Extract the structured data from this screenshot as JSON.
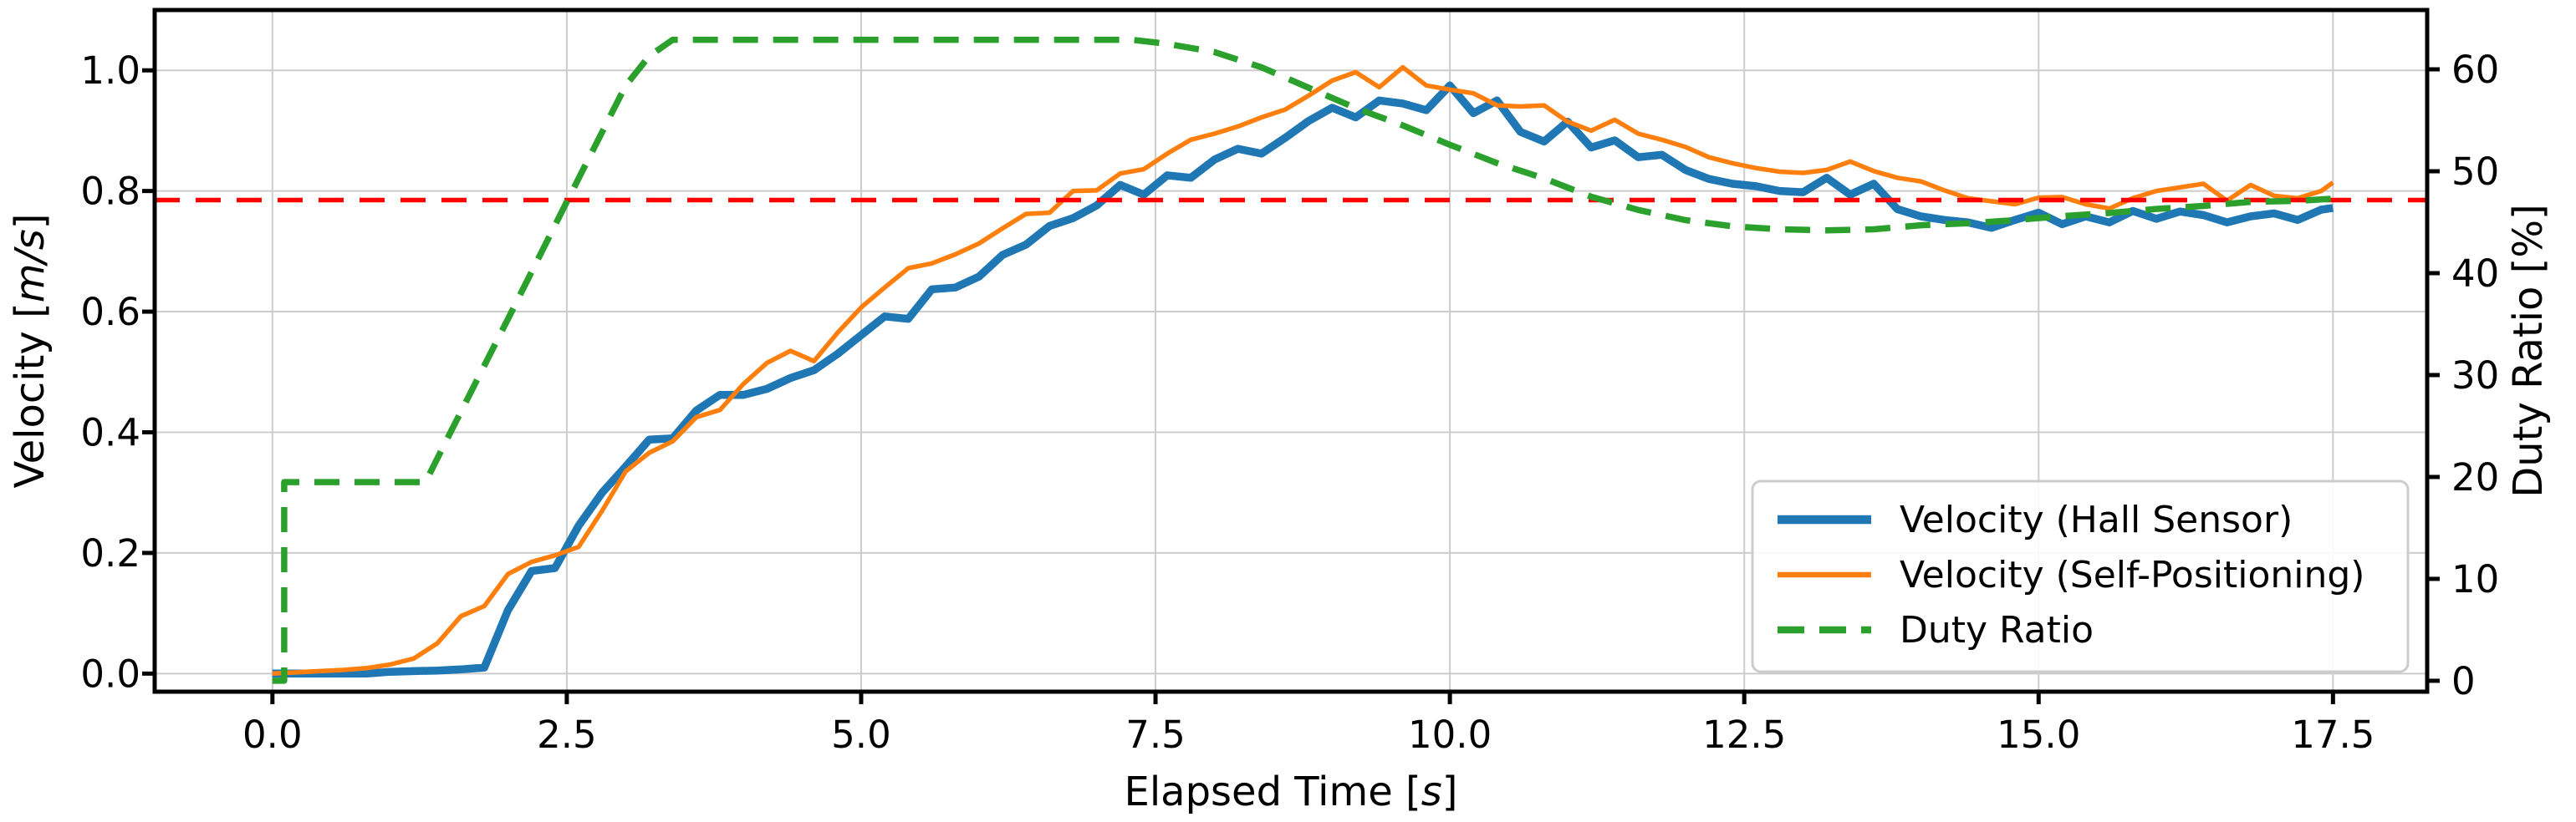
{
  "chart_data": {
    "type": "line",
    "title": "",
    "xlabel": {
      "prefix": "Elapsed Time [",
      "math": "s",
      "suffix": "]"
    },
    "ylabel_left": {
      "prefix": "Velocity [",
      "math": "m/s",
      "suffix": "]"
    },
    "ylabel_right": {
      "prefix": "Duty Ratio [",
      "math": "",
      "suffix": "%]"
    },
    "xlim": [
      -1.0,
      18.3
    ],
    "ylim_left": [
      -0.03,
      1.1
    ],
    "ylim_right": [
      -1.07,
      65.82
    ],
    "grid": true,
    "x_ticks": [
      0.0,
      2.5,
      5.0,
      7.5,
      10.0,
      12.5,
      15.0,
      17.5
    ],
    "x_tick_labels": [
      "0.0",
      "2.5",
      "5.0",
      "7.5",
      "10.0",
      "12.5",
      "15.0",
      "17.5"
    ],
    "y_ticks_left": [
      0.0,
      0.2,
      0.4,
      0.6,
      0.8,
      1.0
    ],
    "y_tick_labels_left": [
      "0.0",
      "0.2",
      "0.4",
      "0.6",
      "0.8",
      "1.0"
    ],
    "y_ticks_right": [
      0,
      10,
      20,
      30,
      40,
      50,
      60
    ],
    "y_tick_labels_right": [
      "0",
      "10",
      "20",
      "30",
      "40",
      "50",
      "60"
    ],
    "colors": {
      "hall": "#1f77b4",
      "selfpos": "#ff7f0e",
      "duty": "#2ca02c",
      "target": "#ff0000",
      "grid": "#cccccc",
      "spine": "#000000",
      "legend_edge": "#cccccc"
    },
    "ref_line": {
      "axis": "left",
      "value": 0.785,
      "color": "#ff0000",
      "width": 5.5,
      "dash": "30 19"
    },
    "t_velocity": [
      0.0,
      0.2,
      0.4,
      0.6,
      0.8,
      1.0,
      1.2,
      1.4,
      1.6,
      1.8,
      2.0,
      2.2,
      2.4,
      2.6,
      2.8,
      3.0,
      3.2,
      3.4,
      3.6,
      3.8,
      4.0,
      4.2,
      4.4,
      4.6,
      4.8,
      5.0,
      5.2,
      5.4,
      5.6,
      5.8,
      6.0,
      6.2,
      6.4,
      6.6,
      6.8,
      7.0,
      7.2,
      7.4,
      7.6,
      7.8,
      8.0,
      8.2,
      8.4,
      8.6,
      8.8,
      9.0,
      9.2,
      9.4,
      9.6,
      9.8,
      10.0,
      10.2,
      10.4,
      10.6,
      10.8,
      11.0,
      11.2,
      11.4,
      11.6,
      11.8,
      12.0,
      12.2,
      12.4,
      12.6,
      12.8,
      13.0,
      13.2,
      13.4,
      13.6,
      13.8,
      14.0,
      14.2,
      14.4,
      14.6,
      14.8,
      15.0,
      15.2,
      15.4,
      15.6,
      15.8,
      16.0,
      16.2,
      16.4,
      16.6,
      16.8,
      17.0,
      17.2,
      17.4,
      17.5
    ],
    "series": [
      {
        "name": "Velocity (Hall Sensor)",
        "axis": "left",
        "color": "#1f77b4",
        "width": 9.5,
        "dash": null,
        "values": [
          0,
          0,
          0,
          0,
          0,
          0.003,
          0.004,
          0.005,
          0.007,
          0.01,
          0.105,
          0.17,
          0.175,
          0.245,
          0.3,
          0.343,
          0.388,
          0.39,
          0.436,
          0.462,
          0.462,
          0.472,
          0.49,
          0.503,
          0.53,
          0.561,
          0.592,
          0.588,
          0.637,
          0.64,
          0.658,
          0.694,
          0.711,
          0.742,
          0.755,
          0.776,
          0.81,
          0.794,
          0.826,
          0.822,
          0.852,
          0.87,
          0.862,
          0.888,
          0.916,
          0.938,
          0.922,
          0.95,
          0.945,
          0.934,
          0.975,
          0.929,
          0.95,
          0.898,
          0.882,
          0.915,
          0.872,
          0.884,
          0.856,
          0.86,
          0.835,
          0.82,
          0.812,
          0.808,
          0.8,
          0.798,
          0.822,
          0.794,
          0.812,
          0.77,
          0.758,
          0.752,
          0.748,
          0.739,
          0.752,
          0.764,
          0.745,
          0.758,
          0.748,
          0.767,
          0.754,
          0.766,
          0.76,
          0.748,
          0.758,
          0.763,
          0.752,
          0.769,
          0.772
        ]
      },
      {
        "name": "Velocity (Self-Positioning)",
        "axis": "left",
        "color": "#ff7f0e",
        "width": 5.5,
        "dash": null,
        "values": [
          0,
          0.002,
          0.004,
          0.006,
          0.009,
          0.015,
          0.025,
          0.05,
          0.095,
          0.112,
          0.165,
          0.185,
          0.196,
          0.21,
          0.27,
          0.335,
          0.366,
          0.385,
          0.425,
          0.437,
          0.48,
          0.515,
          0.535,
          0.518,
          0.565,
          0.607,
          0.64,
          0.672,
          0.68,
          0.695,
          0.713,
          0.738,
          0.762,
          0.764,
          0.8,
          0.801,
          0.829,
          0.836,
          0.862,
          0.885,
          0.895,
          0.907,
          0.922,
          0.935,
          0.958,
          0.983,
          0.997,
          0.972,
          1.005,
          0.975,
          0.968,
          0.962,
          0.942,
          0.94,
          0.942,
          0.915,
          0.9,
          0.918,
          0.895,
          0.885,
          0.873,
          0.856,
          0.846,
          0.838,
          0.832,
          0.83,
          0.835,
          0.849,
          0.833,
          0.822,
          0.816,
          0.801,
          0.788,
          0.783,
          0.778,
          0.789,
          0.79,
          0.778,
          0.771,
          0.788,
          0.8,
          0.806,
          0.812,
          0.784,
          0.81,
          0.792,
          0.788,
          0.8,
          0.814
        ]
      },
      {
        "name": "Duty Ratio",
        "axis": "right",
        "color": "#2ca02c",
        "width": 7.5,
        "dash": "30 18",
        "t": [
          0,
          0.1,
          0.1,
          1.3,
          1.5,
          2.0,
          2.5,
          3.0,
          3.2,
          3.4,
          7.3,
          7.6,
          8.0,
          8.4,
          8.8,
          9.2,
          9.6,
          10.0,
          10.4,
          10.8,
          11.2,
          11.6,
          12.0,
          12.4,
          12.8,
          13.2,
          13.6,
          14.0,
          14.4,
          14.8,
          15.2,
          15.6,
          16.0,
          16.4,
          16.8,
          17.2,
          17.5
        ],
        "values": [
          0,
          0,
          19.5,
          19.5,
          24.1,
          35.5,
          47.0,
          58.4,
          61.3,
          62.9,
          62.9,
          62.5,
          61.7,
          60.2,
          58.2,
          56.2,
          54.5,
          52.6,
          50.8,
          49.3,
          47.5,
          46.2,
          45.2,
          44.6,
          44.3,
          44.2,
          44.3,
          44.7,
          44.9,
          45.2,
          45.6,
          45.9,
          46.3,
          46.6,
          47.0,
          47.1,
          47.3
        ]
      }
    ],
    "legend": {
      "position": "lower right",
      "entries": [
        "Velocity (Hall Sensor)",
        "Velocity (Self-Positioning)",
        "Duty Ratio"
      ]
    }
  }
}
